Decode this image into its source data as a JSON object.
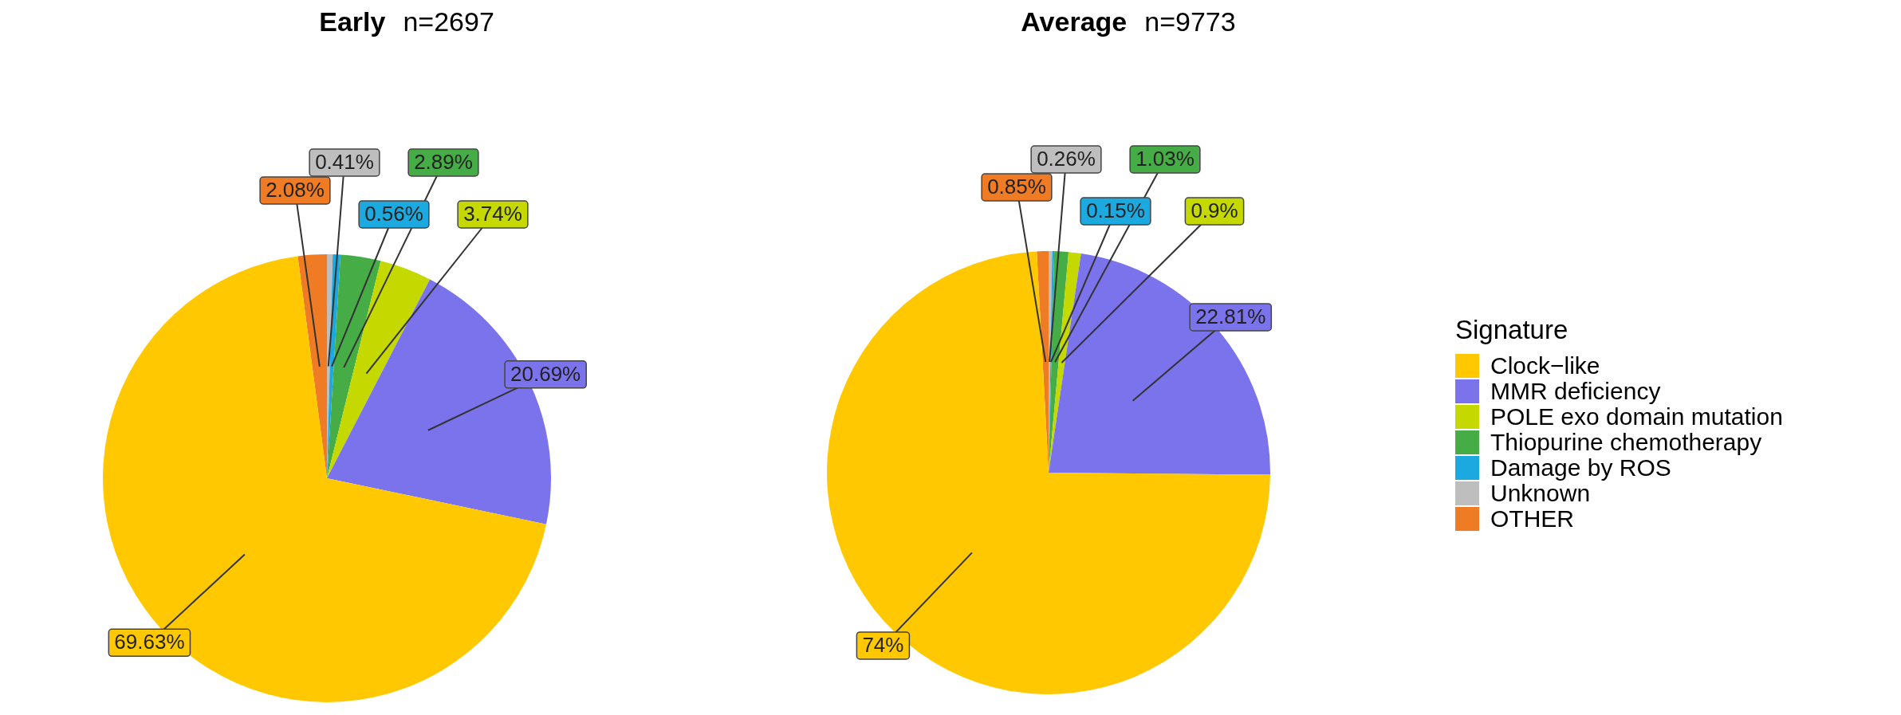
{
  "chart_data": [
    {
      "type": "pie",
      "title": "Early",
      "subtitle": "n=2697",
      "categories": [
        null,
        null,
        null,
        null,
        null,
        null,
        null
      ],
      "values": [
        69.63,
        20.69,
        3.74,
        2.89,
        0.56,
        0.41,
        2.08
      ],
      "colors": [
        "#ffc800",
        "#7b73ec",
        "#c5d800",
        "#46ac46",
        "#1ba9df",
        "#bebebe",
        "#ef7c24"
      ],
      "value_labels": [
        "69.63%",
        "20.69%",
        "3.74%",
        "2.89%",
        "0.56%",
        "0.41%",
        "2.08%"
      ],
      "legend": false
    },
    {
      "type": "pie",
      "title": "Average",
      "subtitle": "n=9773",
      "legend_title": "Signature",
      "categories": [
        "Clock−like",
        "MMR deficiency",
        "POLE exo domain mutation",
        "Thiopurine chemotherapy",
        "Damage by ROS",
        "Unknown",
        "OTHER"
      ],
      "values": [
        74,
        22.81,
        0.9,
        1.03,
        0.15,
        0.26,
        0.85
      ],
      "colors": [
        "#ffc800",
        "#7b73ec",
        "#c5d800",
        "#46ac46",
        "#1ba9df",
        "#bebebe",
        "#ef7c24"
      ],
      "value_labels": [
        "74%",
        "22.81%",
        "0.9%",
        "1.03%",
        "0.15%",
        "0.26%",
        "0.85%"
      ],
      "legend": "right"
    }
  ]
}
